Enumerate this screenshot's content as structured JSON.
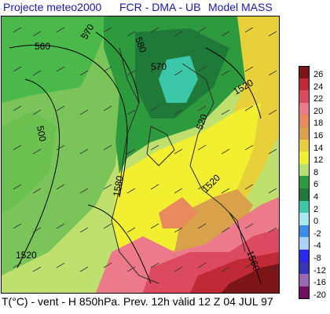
{
  "header": {
    "producer": "Projecte meteo2000",
    "institution": "FCR - DMA - UB",
    "model": "Model MASS"
  },
  "footer": {
    "caption": "T(°C) - vent - H 850hPa. Prev. 12h vàlid 12 Z 04 JUL 97"
  },
  "legend": {
    "items": [
      {
        "label": "26",
        "color": "#7d1418"
      },
      {
        "label": "24",
        "color": "#c02a36"
      },
      {
        "label": "22",
        "color": "#dc4a60"
      },
      {
        "label": "20",
        "color": "#ec7a8a"
      },
      {
        "label": "18",
        "color": "#e88a5c"
      },
      {
        "label": "16",
        "color": "#d9a24a"
      },
      {
        "label": "14",
        "color": "#e8d03a"
      },
      {
        "label": "12",
        "color": "#f2ee30"
      },
      {
        "label": "8",
        "color": "#b8e070"
      },
      {
        "label": "6",
        "color": "#2e9a3e"
      },
      {
        "label": "4",
        "color": "#1f7a3a"
      },
      {
        "label": "2",
        "color": "#3cc7a8"
      },
      {
        "label": "0",
        "color": "#a8e8ee"
      },
      {
        "label": "-2",
        "color": "#3a8ee8"
      },
      {
        "label": "-4",
        "color": "#a8d2f8"
      },
      {
        "label": "-8",
        "color": "#2a2aee"
      },
      {
        "label": "-12",
        "color": "#3a34b8"
      },
      {
        "label": "-16",
        "color": "#9a6ab0"
      },
      {
        "label": "-20",
        "color": "#701060"
      }
    ]
  },
  "contours": {
    "labels": [
      "560",
      "570",
      "580",
      "500",
      "570",
      "520",
      "1520",
      "1580",
      "1520",
      "1560",
      "1520"
    ]
  }
}
